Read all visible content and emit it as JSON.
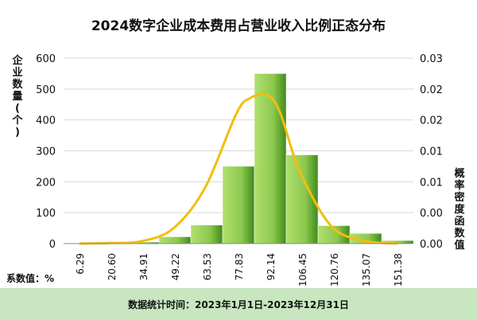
{
  "chart_data": {
    "type": "bar",
    "title": "2024数字企业成本费用占营业收入比例正态分布",
    "ylabel": "企业数量(个)",
    "y2label": "概率密度函数值",
    "xlabel_note": "系数值：%",
    "categories": [
      "6.29",
      "20.60",
      "34.91",
      "49.22",
      "63.53",
      "77.83",
      "92.14",
      "106.45",
      "120.76",
      "135.07",
      "151.38"
    ],
    "values": [
      1,
      2,
      5,
      22,
      60,
      250,
      550,
      287,
      58,
      33,
      10
    ],
    "ylim": [
      0,
      600
    ],
    "yticks": [
      0,
      100,
      200,
      300,
      400,
      500,
      600
    ],
    "y2lim": [
      0,
      0.03
    ],
    "y2ticks": [
      "0.00",
      "0.00",
      "0.01",
      "0.01",
      "0.02",
      "0.02",
      "0.03"
    ],
    "series": [
      {
        "type": "bar",
        "values": [
          1,
          2,
          5,
          22,
          60,
          250,
          550,
          287,
          58,
          33,
          10
        ]
      },
      {
        "type": "line",
        "x": [
          6.29,
          20.6,
          34.91,
          49.22,
          63.53,
          77.83,
          84.0,
          92.14,
          98.0,
          106.45,
          120.76,
          135.07,
          151.38
        ],
        "values": [
          0.0,
          0.0001,
          0.0004,
          0.0025,
          0.009,
          0.021,
          0.0235,
          0.024,
          0.021,
          0.012,
          0.003,
          0.0005,
          0.0
        ]
      }
    ],
    "grid": true,
    "colors": {
      "bar_light": "#b0e070",
      "bar_dark": "#3f8a1c",
      "line": "#f2be0f",
      "grid": "#d9d9d9",
      "axis": "#888888"
    }
  },
  "footer": {
    "text": "数据统计时间：2023年1月1日-2023年12月31日"
  }
}
